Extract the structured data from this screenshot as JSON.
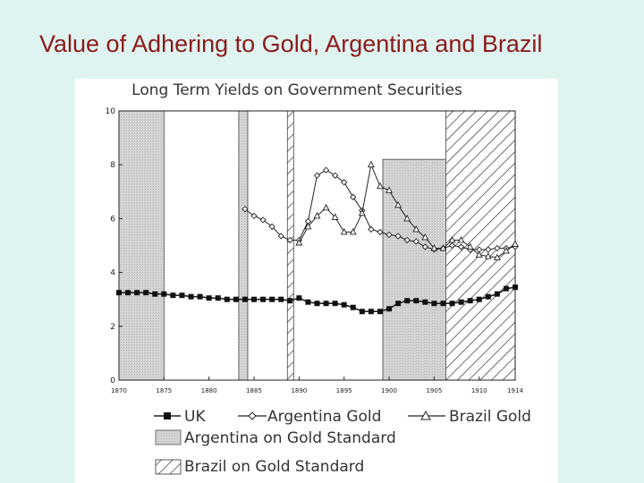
{
  "slide": {
    "title": "Value of Adhering to Gold, Argentina and Brazil"
  },
  "chart_data": {
    "type": "line",
    "title": "Long Term Yields on Government Securities",
    "xlabel": "",
    "ylabel": "",
    "xlim": [
      1870,
      1914
    ],
    "ylim": [
      0,
      10
    ],
    "x_ticks": [
      1870,
      1875,
      1880,
      1885,
      1890,
      1895,
      1900,
      1905,
      1910,
      1914
    ],
    "y_ticks": [
      0,
      2,
      4,
      6,
      8,
      10
    ],
    "series": [
      {
        "name": "UK",
        "marker": "square",
        "x": [
          1870,
          1871,
          1872,
          1873,
          1874,
          1875,
          1876,
          1877,
          1878,
          1879,
          1880,
          1881,
          1882,
          1883,
          1884,
          1885,
          1886,
          1887,
          1888,
          1889,
          1890,
          1891,
          1892,
          1893,
          1894,
          1895,
          1896,
          1897,
          1898,
          1899,
          1900,
          1901,
          1902,
          1903,
          1904,
          1905,
          1906,
          1907,
          1908,
          1909,
          1910,
          1911,
          1912,
          1913,
          1914
        ],
        "values": [
          3.25,
          3.25,
          3.25,
          3.25,
          3.2,
          3.2,
          3.15,
          3.15,
          3.1,
          3.1,
          3.05,
          3.05,
          3.0,
          3.0,
          3.0,
          3.0,
          3.0,
          3.0,
          3.0,
          2.95,
          3.05,
          2.9,
          2.85,
          2.85,
          2.85,
          2.8,
          2.7,
          2.55,
          2.55,
          2.55,
          2.65,
          2.85,
          2.95,
          2.95,
          2.9,
          2.85,
          2.85,
          2.85,
          2.9,
          2.95,
          3.0,
          3.1,
          3.2,
          3.4,
          3.45
        ]
      },
      {
        "name": "Argentina Gold",
        "marker": "diamond",
        "x": [
          1884,
          1885,
          1886,
          1887,
          1888,
          1889,
          1890,
          1891,
          1892,
          1893,
          1894,
          1895,
          1896,
          1897,
          1898,
          1899,
          1900,
          1901,
          1902,
          1903,
          1904,
          1905,
          1906,
          1907,
          1908,
          1909,
          1910,
          1911,
          1912,
          1913,
          1914
        ],
        "values": [
          6.35,
          6.1,
          5.95,
          5.7,
          5.35,
          5.2,
          5.2,
          5.9,
          7.6,
          7.8,
          7.6,
          7.35,
          6.8,
          6.3,
          5.6,
          5.5,
          5.4,
          5.35,
          5.2,
          5.15,
          4.95,
          4.85,
          4.9,
          5.0,
          4.95,
          4.85,
          4.85,
          4.85,
          4.9,
          4.9,
          4.95
        ]
      },
      {
        "name": "Brazil Gold",
        "marker": "triangle",
        "x": [
          1890,
          1891,
          1892,
          1893,
          1894,
          1895,
          1896,
          1897,
          1898,
          1899,
          1900,
          1901,
          1902,
          1903,
          1904,
          1905,
          1906,
          1907,
          1908,
          1909,
          1910,
          1911,
          1912,
          1913,
          1914
        ],
        "values": [
          5.1,
          5.7,
          6.1,
          6.4,
          6.05,
          5.5,
          5.5,
          6.2,
          8.0,
          7.2,
          7.05,
          6.5,
          6.0,
          5.6,
          5.3,
          4.9,
          4.9,
          5.2,
          5.2,
          4.95,
          4.65,
          4.6,
          4.55,
          4.8,
          5.05
        ]
      }
    ],
    "shaded_periods": [
      {
        "label": "Argentina on Gold Standard",
        "pattern": "gray",
        "start": 1870,
        "end": 1875,
        "top": 10
      },
      {
        "label": "Argentina on Gold Standard",
        "pattern": "gray",
        "start": 1883.3,
        "end": 1884.3,
        "top": 10
      },
      {
        "label": "Brazil on Gold Standard",
        "pattern": "hatch",
        "start": 1888.7,
        "end": 1889.4,
        "top": 10
      },
      {
        "label": "Argentina on Gold Standard",
        "pattern": "gray",
        "start": 1899.3,
        "end": 1914,
        "top": 8.2
      },
      {
        "label": "Brazil on Gold Standard",
        "pattern": "hatch",
        "start": 1906.3,
        "end": 1914,
        "top": 10
      }
    ],
    "legend": {
      "placement": "bottom",
      "series_labels": [
        "UK",
        "Argentina Gold",
        "Brazil Gold"
      ],
      "argentina_label": "Argentina on Gold Standard",
      "brazil_label": "Brazil on Gold Standard"
    }
  }
}
